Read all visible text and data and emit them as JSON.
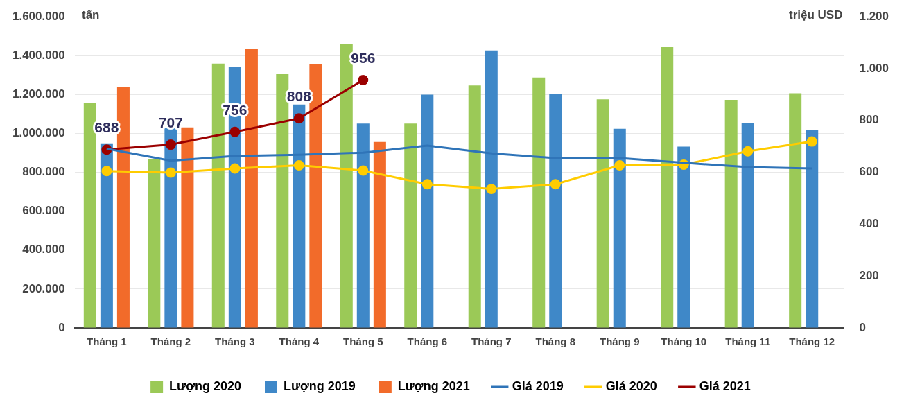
{
  "chart_data": {
    "type": "bar",
    "ylabel": "tấn",
    "y2label": "triệu USD",
    "categories": [
      "Tháng 1",
      "Tháng 2",
      "Tháng 3",
      "Tháng 4",
      "Tháng 5",
      "Tháng 6",
      "Tháng 7",
      "Tháng 8",
      "Tháng 9",
      "Tháng 10",
      "Tháng 11",
      "Tháng 12"
    ],
    "series": [
      {
        "name": "Lượng 2020",
        "color": "#9bc957",
        "values": [
          1156000,
          868000,
          1359000,
          1305000,
          1458000,
          1051000,
          1247000,
          1288000,
          1176000,
          1444000,
          1173000,
          1207000
        ]
      },
      {
        "name": "Lượng 2019",
        "color": "#3f88c8",
        "values": [
          949000,
          1027000,
          1342000,
          1149000,
          1051000,
          1200000,
          1427000,
          1203000,
          1024000,
          932000,
          1054000,
          1020000
        ]
      },
      {
        "name": "Lượng 2021",
        "color": "#f26b2a",
        "values": [
          1237000,
          1031000,
          1437000,
          1356000,
          956000,
          null,
          null,
          null,
          null,
          null,
          null,
          null
        ]
      },
      {
        "name": "Giá 2019",
        "type": "line",
        "axis": "y2",
        "color": "#2f74b8",
        "marker": "none",
        "values": [
          691,
          645,
          663,
          668,
          676,
          703,
          673,
          655,
          655,
          637,
          620,
          615
        ]
      },
      {
        "name": "Giá 2020",
        "type": "line",
        "axis": "y2",
        "color": "#ffcc00",
        "marker": "circle",
        "values": [
          605,
          599,
          615,
          627,
          607,
          554,
          536,
          554,
          627,
          630,
          681,
          719
        ]
      },
      {
        "name": "Giá 2021",
        "type": "line",
        "axis": "y2",
        "color": "#9b0000",
        "marker": "circle",
        "values": [
          688,
          707,
          756,
          808,
          956,
          null,
          null,
          null,
          null,
          null,
          null,
          null
        ],
        "value_labels": [
          "688",
          "707",
          "756",
          "808",
          "956",
          null,
          null,
          null,
          null,
          null,
          null,
          null
        ]
      }
    ],
    "ylim": [
      0,
      1600000
    ],
    "yticks": [
      {
        "value": 0,
        "label": "0"
      },
      {
        "value": 200000,
        "label": "200.000"
      },
      {
        "value": 400000,
        "label": "400.000"
      },
      {
        "value": 600000,
        "label": "600.000"
      },
      {
        "value": 800000,
        "label": "800.000"
      },
      {
        "value": 1000000,
        "label": "1.000.000"
      },
      {
        "value": 1200000,
        "label": "1.200.000"
      },
      {
        "value": 1400000,
        "label": "1.400.000"
      },
      {
        "value": 1600000,
        "label": "1.600.000"
      }
    ],
    "y2lim": [
      0,
      1200
    ],
    "y2ticks": [
      0,
      200,
      400,
      600,
      800,
      {
        "value": 1000,
        "label": "1.000"
      },
      {
        "value": 1200,
        "label": "1.200"
      }
    ],
    "grid": "y",
    "legend": "bottom",
    "line_style": "solid"
  }
}
